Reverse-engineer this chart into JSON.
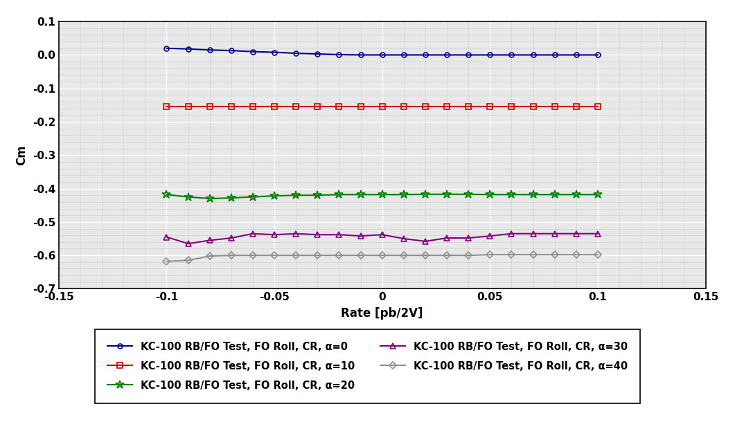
{
  "title": "",
  "xlabel": "Rate [pb/2V]",
  "ylabel": "Cm",
  "xlim": [
    -0.15,
    0.15
  ],
  "ylim": [
    -0.7,
    0.1
  ],
  "xticks": [
    -0.15,
    -0.1,
    -0.05,
    0,
    0.05,
    0.1,
    0.15
  ],
  "yticks": [
    0.1,
    0.0,
    -0.1,
    -0.2,
    -0.3,
    -0.4,
    -0.5,
    -0.6,
    -0.7
  ],
  "series": [
    {
      "label": "KC-100 RB/FO Test, FO Roll, CR, α=0",
      "color": "#00008B",
      "marker": "o",
      "x": [
        -0.1,
        -0.09,
        -0.08,
        -0.07,
        -0.06,
        -0.05,
        -0.04,
        -0.03,
        -0.02,
        -0.01,
        0.0,
        0.01,
        0.02,
        0.03,
        0.04,
        0.05,
        0.06,
        0.07,
        0.08,
        0.09,
        0.1
      ],
      "y": [
        0.02,
        0.018,
        0.015,
        0.013,
        0.01,
        0.008,
        0.005,
        0.003,
        0.001,
        0.0,
        0.0,
        0.0,
        0.0,
        0.0,
        0.0,
        0.0,
        0.0,
        0.0,
        0.0,
        0.0,
        0.0
      ]
    },
    {
      "label": "KC-100 RB/FO Test, FO Roll, CR, α=10",
      "color": "#CC0000",
      "marker": "s",
      "x": [
        -0.1,
        -0.09,
        -0.08,
        -0.07,
        -0.06,
        -0.05,
        -0.04,
        -0.03,
        -0.02,
        -0.01,
        0.0,
        0.01,
        0.02,
        0.03,
        0.04,
        0.05,
        0.06,
        0.07,
        0.08,
        0.09,
        0.1
      ],
      "y": [
        -0.155,
        -0.155,
        -0.155,
        -0.155,
        -0.155,
        -0.155,
        -0.155,
        -0.155,
        -0.155,
        -0.155,
        -0.155,
        -0.155,
        -0.155,
        -0.155,
        -0.155,
        -0.155,
        -0.155,
        -0.155,
        -0.155,
        -0.155,
        -0.155
      ]
    },
    {
      "label": "KC-100 RB/FO Test, FO Roll, CR, α=20",
      "color": "#008000",
      "marker": "*",
      "x": [
        -0.1,
        -0.09,
        -0.08,
        -0.07,
        -0.06,
        -0.05,
        -0.04,
        -0.03,
        -0.02,
        -0.01,
        0.0,
        0.01,
        0.02,
        0.03,
        0.04,
        0.05,
        0.06,
        0.07,
        0.08,
        0.09,
        0.1
      ],
      "y": [
        -0.418,
        -0.425,
        -0.43,
        -0.428,
        -0.425,
        -0.422,
        -0.42,
        -0.42,
        -0.418,
        -0.418,
        -0.418,
        -0.418,
        -0.417,
        -0.417,
        -0.417,
        -0.418,
        -0.418,
        -0.418,
        -0.418,
        -0.418,
        -0.418
      ]
    },
    {
      "label": "KC-100 RB/FO Test, FO Roll, CR, α=30",
      "color": "#800080",
      "marker": "^",
      "x": [
        -0.1,
        -0.09,
        -0.08,
        -0.07,
        -0.06,
        -0.05,
        -0.04,
        -0.03,
        -0.02,
        -0.01,
        0.0,
        0.01,
        0.02,
        0.03,
        0.04,
        0.05,
        0.06,
        0.07,
        0.08,
        0.09,
        0.1
      ],
      "y": [
        -0.545,
        -0.565,
        -0.555,
        -0.548,
        -0.535,
        -0.538,
        -0.535,
        -0.538,
        -0.538,
        -0.542,
        -0.538,
        -0.55,
        -0.558,
        -0.548,
        -0.548,
        -0.542,
        -0.535,
        -0.535,
        -0.535,
        -0.535,
        -0.535
      ]
    },
    {
      "label": "KC-100 RB/FO Test, FO Roll, CR, α=40",
      "color": "#909090",
      "marker": "D",
      "x": [
        -0.1,
        -0.09,
        -0.08,
        -0.07,
        -0.06,
        -0.05,
        -0.04,
        -0.03,
        -0.02,
        -0.01,
        0.0,
        0.01,
        0.02,
        0.03,
        0.04,
        0.05,
        0.06,
        0.07,
        0.08,
        0.09,
        0.1
      ],
      "y": [
        -0.618,
        -0.615,
        -0.602,
        -0.6,
        -0.6,
        -0.6,
        -0.6,
        -0.6,
        -0.6,
        -0.6,
        -0.6,
        -0.6,
        -0.6,
        -0.6,
        -0.6,
        -0.598,
        -0.598,
        -0.598,
        -0.598,
        -0.598,
        -0.598
      ]
    }
  ],
  "plot_bgcolor": "#E8E8E8",
  "grid_major_color": "#FFFFFF",
  "grid_minor_color": "#D0D0D0",
  "legend_order": [
    0,
    1,
    2,
    3,
    4
  ],
  "legend_ncol": 2,
  "figure_width": 10.61,
  "figure_height": 6.23
}
